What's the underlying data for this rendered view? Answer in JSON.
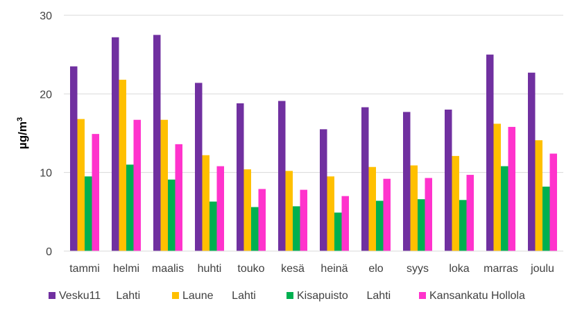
{
  "chart_data": {
    "type": "bar",
    "title": "",
    "xlabel": "",
    "ylabel": "µg/m",
    "ylabel_superscript": "3",
    "ylim": [
      0,
      30
    ],
    "yticks": [
      "0",
      "10",
      "20",
      "30"
    ],
    "grid": true,
    "legend_position": "bottom",
    "categories": [
      "tammi",
      "helmi",
      "maalis",
      "huhti",
      "touko",
      "kesä",
      "heinä",
      "elo",
      "syys",
      "loka",
      "marras",
      "joulu"
    ],
    "series": [
      {
        "name": "Vesku11     Lahti",
        "color": "#7030a0",
        "values": [
          23.5,
          27.2,
          27.5,
          21.4,
          18.8,
          19.1,
          15.5,
          18.3,
          17.7,
          18.0,
          25.0,
          22.7
        ]
      },
      {
        "name": "Laune      Lahti",
        "color": "#ffc000",
        "values": [
          16.8,
          21.8,
          16.7,
          12.2,
          10.4,
          10.2,
          9.5,
          10.7,
          10.9,
          12.1,
          16.2,
          14.1
        ]
      },
      {
        "name": "Kisapuisto      Lahti",
        "color": "#00b050",
        "values": [
          9.5,
          11.0,
          9.1,
          6.3,
          5.6,
          5.7,
          4.9,
          6.4,
          6.6,
          6.5,
          10.8,
          8.2
        ]
      },
      {
        "name": "Kansankatu Hollola",
        "color": "#ff33cc",
        "values": [
          14.9,
          16.7,
          13.6,
          10.8,
          7.9,
          7.8,
          7.0,
          9.2,
          9.3,
          9.7,
          15.8,
          12.4
        ]
      }
    ]
  }
}
